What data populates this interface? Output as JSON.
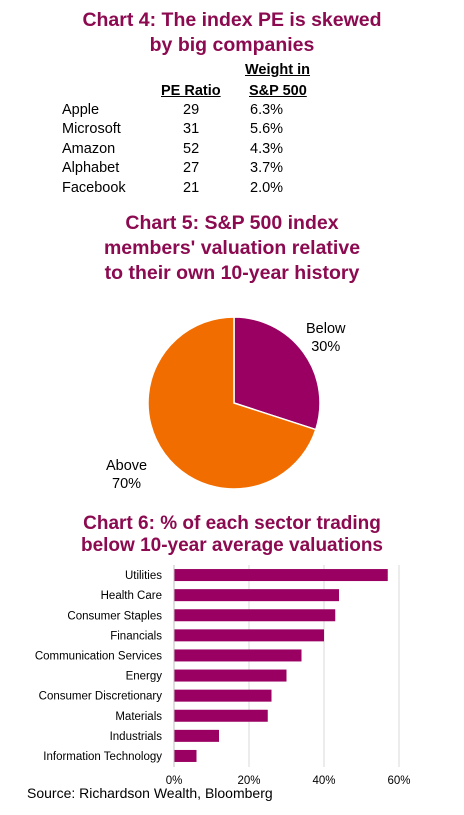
{
  "charts": {
    "chart4": {
      "title": "Chart 4: The index PE is skewed\nby big companies",
      "col1_header": "PE Ratio",
      "col2_header_line1": "Weight in",
      "col2_header_line2": "S&P 500",
      "rows": [
        {
          "company": "Apple",
          "pe": "29",
          "weight": "6.3%"
        },
        {
          "company": "Microsoft",
          "pe": "31",
          "weight": "5.6%"
        },
        {
          "company": "Amazon",
          "pe": "52",
          "weight": "4.3%"
        },
        {
          "company": "Alphabet",
          "pe": "27",
          "weight": "3.7%"
        },
        {
          "company": "Facebook",
          "pe": "21",
          "weight": "2.0%"
        }
      ]
    },
    "chart5": {
      "title": "Chart 5: S&P 500 index\nmembers' valuation relative\nto their own 10-year history"
    },
    "chart6": {
      "title": "Chart 6: % of each sector trading\nbelow 10-year average valuations"
    }
  },
  "source": "Source: Richardson Wealth, Bloomberg",
  "colors": {
    "purple": "#990061",
    "orange": "#f26d00",
    "title": "#8b0a50"
  },
  "chart_data": [
    {
      "type": "table",
      "title": "Chart 4: The index PE is skewed by big companies",
      "columns": [
        "",
        "PE Ratio",
        "Weight in S&P 500"
      ],
      "rows": [
        [
          "Apple",
          29,
          "6.3%"
        ],
        [
          "Microsoft",
          31,
          "5.6%"
        ],
        [
          "Amazon",
          52,
          "4.3%"
        ],
        [
          "Alphabet",
          27,
          "3.7%"
        ],
        [
          "Facebook",
          21,
          "2.0%"
        ]
      ]
    },
    {
      "type": "pie",
      "title": "Chart 5: S&P 500 index members' valuation relative to their own 10-year history",
      "categories": [
        "Below",
        "Above"
      ],
      "values": [
        30,
        70
      ],
      "labels": [
        "30%",
        "70%"
      ],
      "colors": [
        "#990061",
        "#f26d00"
      ]
    },
    {
      "type": "bar",
      "orientation": "horizontal",
      "title": "Chart 6: % of each sector trading below 10-year average valuations",
      "categories": [
        "Utilities",
        "Health Care",
        "Consumer Staples",
        "Financials",
        "Communication Services",
        "Energy",
        "Consumer Discretionary",
        "Materials",
        "Industrials",
        "Information Technology"
      ],
      "values": [
        57,
        44,
        43,
        40,
        34,
        30,
        26,
        25,
        12,
        6
      ],
      "xlim": [
        0,
        60
      ],
      "xticks": [
        "0%",
        "20%",
        "40%",
        "60%"
      ],
      "grid": true,
      "color": "#990061"
    }
  ]
}
